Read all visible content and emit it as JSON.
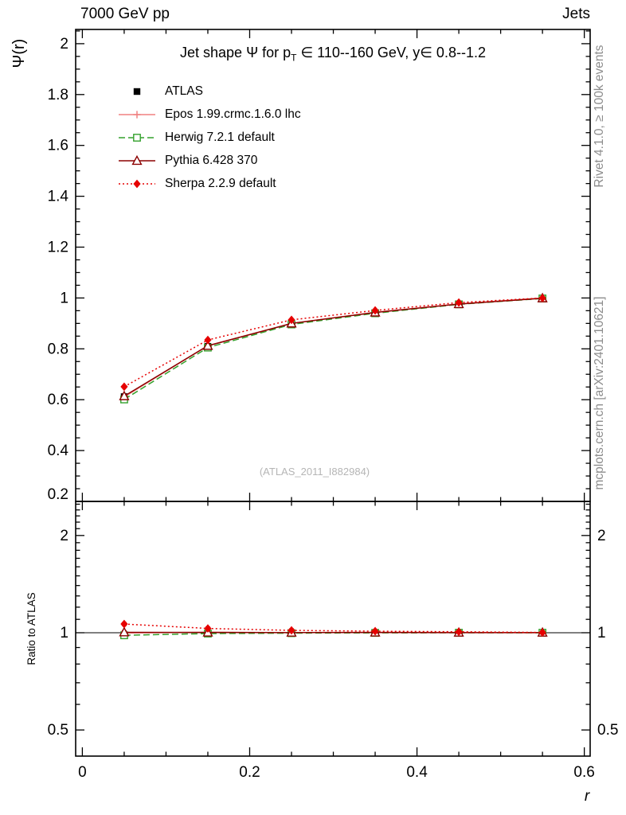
{
  "header": {
    "left": "7000 GeV pp",
    "right": "Jets"
  },
  "side": {
    "top": "Rivet 4.1.0, ≥ 100k events",
    "bottom": "mcplots.cern.ch [arXiv:2401.10621]"
  },
  "main_panel": {
    "title_pre": "Jet shape Ψ for p",
    "title_sub": "T",
    "title_post": " ∈ 110--160 GeV, y∈ 0.8--1.2",
    "watermark": "(ATLAS_2011_I882984)"
  },
  "colors": {
    "frame": "#000000",
    "side_text": "#8c8c8c",
    "watermark": "#b5b5b5"
  },
  "chart_data": [
    {
      "type": "line",
      "panel": "main",
      "title": "Jet shape Ψ for p_T ∈ 110--160 GeV, y ∈ 0.8--1.2",
      "xlabel": "r",
      "ylabel": "Ψ(r)",
      "xlim": [
        -0.008,
        0.607
      ],
      "ylim": [
        0.2,
        2.056
      ],
      "yscale": "linear",
      "grid": false,
      "legend_position": "upper-left",
      "xticks": [
        0,
        0.2,
        0.4,
        0.6
      ],
      "yticks": [
        0.2,
        0.4,
        0.6,
        0.8,
        1,
        1.2,
        1.4,
        1.6,
        1.8,
        2
      ],
      "x": [
        0.05,
        0.15,
        0.25,
        0.35,
        0.45,
        0.55
      ],
      "series": [
        {
          "name": "ATLAS",
          "color": "#000000",
          "marker": "square-filled",
          "line": "none",
          "yerr": 0.008,
          "values": [
            0.612,
            0.81,
            0.899,
            0.941,
            0.975,
            0.998
          ]
        },
        {
          "name": "Epos 1.99.crmc.1.6.0 lhc",
          "color": "#f08080",
          "marker": "cross-open",
          "line": "solid",
          "yerr": 0.004,
          "values": [
            0.611,
            0.813,
            0.9,
            0.944,
            0.977,
            1.0
          ]
        },
        {
          "name": "Herwig 7.2.1 default",
          "color": "#33a02c",
          "marker": "square-open",
          "line": "dashed",
          "yerr": 0.004,
          "values": [
            0.601,
            0.805,
            0.896,
            0.94,
            0.975,
            0.998
          ]
        },
        {
          "name": "Pythia 6.428 370",
          "color": "#8b0000",
          "marker": "triangle-open",
          "line": "solid",
          "yerr": 0.004,
          "values": [
            0.614,
            0.812,
            0.9,
            0.943,
            0.976,
            0.999
          ]
        },
        {
          "name": "Sherpa 2.2.9 default",
          "color": "#e60000",
          "marker": "diamond-filled",
          "line": "dotted",
          "yerr": 0.004,
          "values": [
            0.651,
            0.835,
            0.914,
            0.951,
            0.982,
            1.0
          ]
        }
      ]
    },
    {
      "type": "line",
      "panel": "ratio",
      "ylabel": "Ratio to ATLAS",
      "xlim": [
        -0.008,
        0.607
      ],
      "ylim": [
        0.415,
        2.55
      ],
      "yscale": "log",
      "grid": false,
      "reference_line": 1,
      "xticks": [
        0,
        0.2,
        0.4,
        0.6
      ],
      "yticks": [
        0.5,
        1,
        2
      ],
      "x": [
        0.05,
        0.15,
        0.25,
        0.35,
        0.45,
        0.55
      ],
      "series": [
        {
          "name": "Epos 1.99.crmc.1.6.0 lhc",
          "color": "#f08080",
          "marker": "cross-open",
          "line": "solid",
          "yerr": 0.012,
          "values": [
            0.998,
            1.004,
            1.001,
            1.003,
            1.002,
            1.001
          ]
        },
        {
          "name": "Herwig 7.2.1 default",
          "color": "#33a02c",
          "marker": "square-open",
          "line": "dashed",
          "yerr": 0.012,
          "values": [
            0.982,
            0.994,
            0.997,
            0.999,
            1.0,
            1.0
          ]
        },
        {
          "name": "Pythia 6.428 370",
          "color": "#8b0000",
          "marker": "triangle-open",
          "line": "solid",
          "yerr": 0.012,
          "values": [
            1.003,
            1.002,
            1.001,
            1.002,
            1.001,
            1.001
          ]
        },
        {
          "name": "Sherpa 2.2.9 default",
          "color": "#e60000",
          "marker": "diamond-filled",
          "line": "dotted",
          "yerr": 0.012,
          "values": [
            1.064,
            1.031,
            1.017,
            1.011,
            1.007,
            1.002
          ]
        }
      ]
    }
  ]
}
